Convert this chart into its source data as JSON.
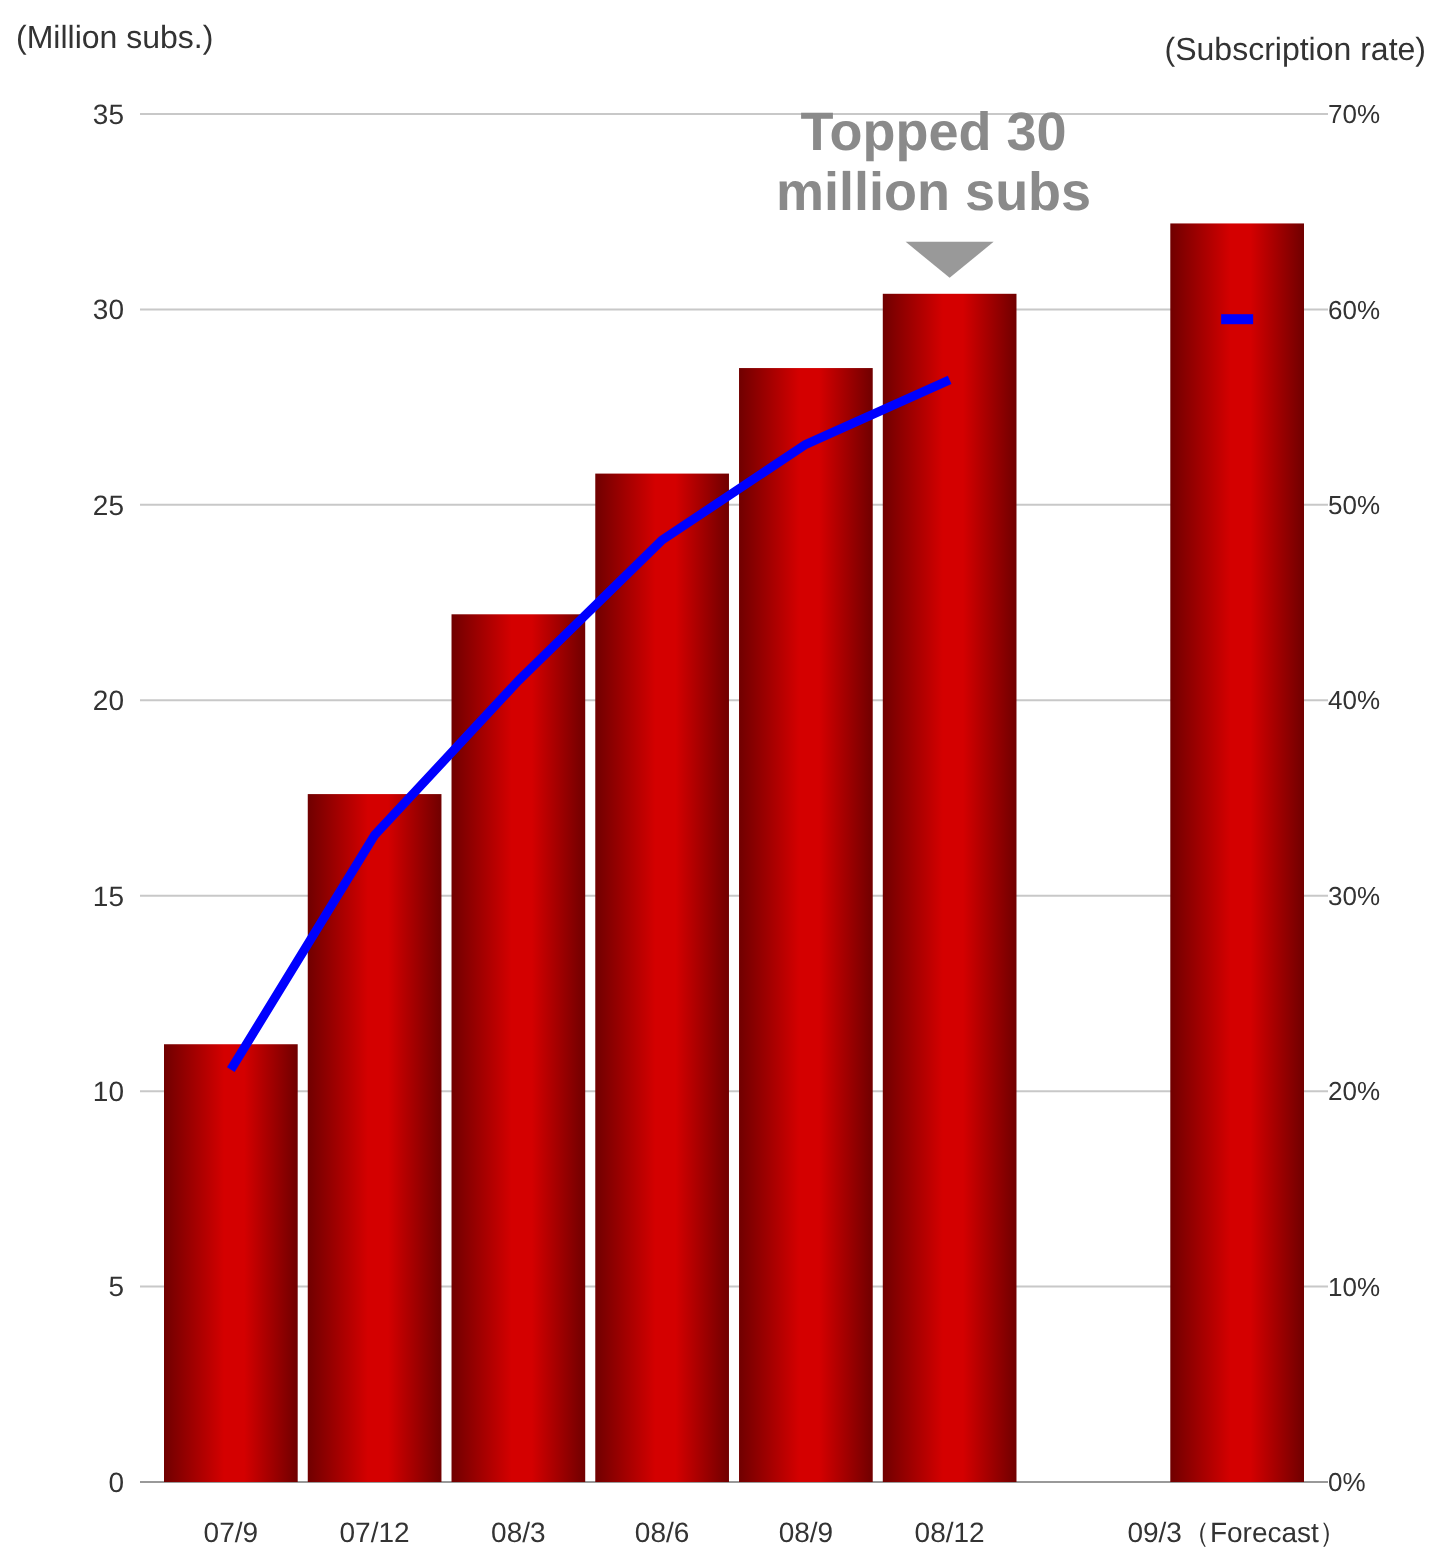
{
  "chart_data": {
    "type": "bar",
    "ylabel": "(Million  subs.)",
    "y2label": "(Subscription rate)",
    "categories": [
      "07/9",
      "07/12",
      "08/3",
      "08/6",
      "08/9",
      "08/12",
      null,
      "09/3（Forecast）"
    ],
    "series": [
      {
        "color": "#d40000",
        "values": [
          11.2,
          17.6,
          22.2,
          25.8,
          28.5,
          30.4,
          null,
          32.2
        ]
      },
      {
        "type": "line",
        "axis": "y2",
        "color": "#0000ff",
        "values": [
          21.1,
          33.1,
          41.0,
          48.2,
          53.1,
          56.4,
          null,
          null
        ]
      },
      {
        "type": "scatter",
        "axis": "y2",
        "color": "#0000ff",
        "marker": "square",
        "values": [
          null,
          null,
          null,
          null,
          null,
          null,
          null,
          59.5
        ]
      }
    ],
    "ylim": [
      0,
      35
    ],
    "yticks": [
      0,
      5,
      10,
      15,
      20,
      25,
      30,
      35
    ],
    "y2lim": [
      0,
      70
    ],
    "y2ticks": [
      {
        "value": 0,
        "label": "0%"
      },
      {
        "value": 10,
        "label": "10%"
      },
      {
        "value": 20,
        "label": "20%"
      },
      {
        "value": 30,
        "label": "30%"
      },
      {
        "value": 40,
        "label": "40%"
      },
      {
        "value": 50,
        "label": "50%"
      },
      {
        "value": 60,
        "label": "60%"
      },
      {
        "value": 70,
        "label": "70%"
      }
    ],
    "grid": "y",
    "line_style": "solid",
    "marker": "none",
    "annotations": [
      {
        "text": "Topped 30 million subs",
        "x": "08/12",
        "y": 30.4
      }
    ]
  }
}
